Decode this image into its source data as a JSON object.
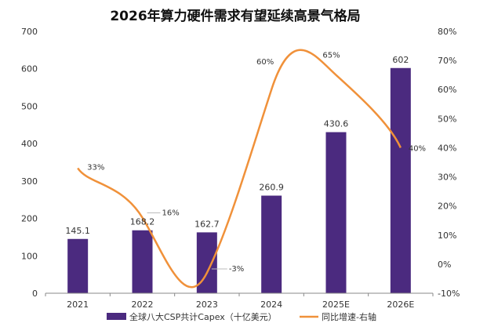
{
  "chart_data": {
    "type": "bar+line",
    "title": "2026年算力硬件需求有望延续高景气格局",
    "categories": [
      "2021",
      "2022",
      "2023",
      "2024",
      "2025E",
      "2026E"
    ],
    "series": [
      {
        "name": "全球八大CSP共计Capex（十亿美元）",
        "type": "bar",
        "axis": "left",
        "color": "#4b2a7f",
        "values": [
          145.1,
          168.2,
          162.7,
          260.9,
          430.6,
          602
        ],
        "labels": [
          "145.1",
          "168.2",
          "162.7",
          "260.9",
          "430.6",
          "602"
        ]
      },
      {
        "name": "同比增速-右轴",
        "type": "line",
        "axis": "right",
        "color": "#f0913a",
        "values": [
          33,
          16,
          -3,
          60,
          65,
          40
        ],
        "labels": [
          "33%",
          "16%",
          "-3%",
          "60%",
          "65%",
          "40%"
        ]
      }
    ],
    "left_axis": {
      "ylim": [
        0,
        700
      ],
      "ticks": [
        "0",
        "100",
        "200",
        "300",
        "400",
        "500",
        "600",
        "700"
      ]
    },
    "right_axis": {
      "ylim": [
        -10,
        80
      ],
      "ticks": [
        "-10%",
        "0%",
        "10%",
        "20%",
        "30%",
        "40%",
        "50%",
        "60%",
        "70%",
        "80%"
      ]
    },
    "grid": false,
    "legend": "bottom"
  }
}
